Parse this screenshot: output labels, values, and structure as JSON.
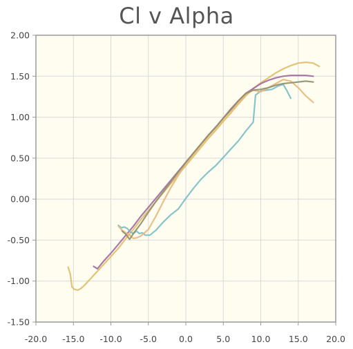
{
  "chart_data": {
    "type": "line",
    "title": "Cl v Alpha",
    "xlabel": "",
    "ylabel": "",
    "xlim": [
      -20,
      20
    ],
    "ylim": [
      -1.5,
      2.0
    ],
    "x_ticks": [
      "-20.0",
      "-15.0",
      "-10.0",
      "-5.0",
      "0.0",
      "5.0",
      "10.0",
      "15.0",
      "20.0"
    ],
    "y_ticks": [
      "2.00",
      "1.50",
      "1.00",
      "0.50",
      "0.00",
      "-0.50",
      "-1.00",
      "-1.50"
    ],
    "grid": true,
    "legend": "none",
    "plot_background": "#fffcf0",
    "grid_color": "#d9d9d9",
    "axis_color": "#999999",
    "series": [
      {
        "color": "#e0bc68",
        "points": [
          [
            -15.7,
            -0.83
          ],
          [
            -15.4,
            -0.92
          ],
          [
            -15.2,
            -1.07
          ],
          [
            -14.9,
            -1.1
          ],
          [
            -14.4,
            -1.11
          ],
          [
            -14.0,
            -1.09
          ],
          [
            -13.5,
            -1.05
          ],
          [
            -13.0,
            -1.0
          ],
          [
            -12.5,
            -0.95
          ],
          [
            -12.0,
            -0.9
          ],
          [
            -11.0,
            -0.8
          ],
          [
            -10.0,
            -0.7
          ],
          [
            -9.0,
            -0.6
          ],
          [
            -8.0,
            -0.48
          ],
          [
            -7.0,
            -0.37
          ],
          [
            -6.0,
            -0.25
          ],
          [
            -5.0,
            -0.14
          ],
          [
            -4.0,
            -0.03
          ],
          [
            -3.0,
            0.08
          ],
          [
            -2.0,
            0.19
          ],
          [
            -1.0,
            0.3
          ],
          [
            0.0,
            0.41
          ],
          [
            1.0,
            0.52
          ],
          [
            2.0,
            0.63
          ],
          [
            3.0,
            0.74
          ],
          [
            4.0,
            0.84
          ],
          [
            5.0,
            0.95
          ],
          [
            6.0,
            1.05
          ],
          [
            7.0,
            1.16
          ],
          [
            8.0,
            1.26
          ],
          [
            9.0,
            1.35
          ],
          [
            10.0,
            1.42
          ],
          [
            11.0,
            1.48
          ],
          [
            12.0,
            1.54
          ],
          [
            13.0,
            1.59
          ],
          [
            14.0,
            1.63
          ],
          [
            15.0,
            1.66
          ],
          [
            16.0,
            1.67
          ],
          [
            17.0,
            1.66
          ],
          [
            17.8,
            1.62
          ]
        ]
      },
      {
        "color": "#9e6b9e",
        "points": [
          [
            -12.3,
            -0.82
          ],
          [
            -11.8,
            -0.85
          ],
          [
            -11.0,
            -0.76
          ],
          [
            -10.0,
            -0.66
          ],
          [
            -9.0,
            -0.55
          ],
          [
            -8.0,
            -0.44
          ],
          [
            -7.0,
            -0.33
          ],
          [
            -6.0,
            -0.21
          ],
          [
            -5.0,
            -0.1
          ],
          [
            -4.0,
            0.01
          ],
          [
            -3.0,
            0.12
          ],
          [
            -2.0,
            0.23
          ],
          [
            -1.0,
            0.34
          ],
          [
            0.0,
            0.45
          ],
          [
            1.0,
            0.56
          ],
          [
            2.0,
            0.67
          ],
          [
            3.0,
            0.78
          ],
          [
            4.0,
            0.88
          ],
          [
            5.0,
            0.99
          ],
          [
            6.0,
            1.1
          ],
          [
            7.0,
            1.2
          ],
          [
            8.0,
            1.29
          ],
          [
            9.0,
            1.35
          ],
          [
            10.0,
            1.41
          ],
          [
            11.0,
            1.45
          ],
          [
            12.0,
            1.48
          ],
          [
            13.0,
            1.5
          ],
          [
            14.0,
            1.51
          ],
          [
            15.0,
            1.51
          ],
          [
            16.0,
            1.51
          ],
          [
            17.0,
            1.5
          ]
        ]
      },
      {
        "color": "#78bfc4",
        "points": [
          [
            -9.0,
            -0.32
          ],
          [
            -8.6,
            -0.35
          ],
          [
            -8.2,
            -0.34
          ],
          [
            -7.8,
            -0.36
          ],
          [
            -7.4,
            -0.4
          ],
          [
            -7.0,
            -0.42
          ],
          [
            -6.6,
            -0.39
          ],
          [
            -6.2,
            -0.42
          ],
          [
            -5.8,
            -0.41
          ],
          [
            -5.4,
            -0.44
          ],
          [
            -4.8,
            -0.44
          ],
          [
            -4.0,
            -0.38
          ],
          [
            -3.0,
            -0.28
          ],
          [
            -2.0,
            -0.19
          ],
          [
            -1.0,
            -0.12
          ],
          [
            0.0,
            0.01
          ],
          [
            1.0,
            0.13
          ],
          [
            2.0,
            0.24
          ],
          [
            3.0,
            0.33
          ],
          [
            4.0,
            0.41
          ],
          [
            5.0,
            0.51
          ],
          [
            6.0,
            0.61
          ],
          [
            7.0,
            0.71
          ],
          [
            8.0,
            0.83
          ],
          [
            9.0,
            0.94
          ],
          [
            9.3,
            1.27
          ],
          [
            10.0,
            1.32
          ],
          [
            10.8,
            1.33
          ],
          [
            11.5,
            1.34
          ],
          [
            12.3,
            1.38
          ],
          [
            13.0,
            1.4
          ],
          [
            13.5,
            1.32
          ],
          [
            14.0,
            1.23
          ]
        ]
      },
      {
        "color": "#e8b87a",
        "points": [
          [
            -9.0,
            -0.33
          ],
          [
            -8.5,
            -0.38
          ],
          [
            -8.0,
            -0.41
          ],
          [
            -7.5,
            -0.44
          ],
          [
            -7.0,
            -0.48
          ],
          [
            -6.5,
            -0.47
          ],
          [
            -6.0,
            -0.45
          ],
          [
            -5.0,
            -0.37
          ],
          [
            -4.0,
            -0.21
          ],
          [
            -3.0,
            -0.03
          ],
          [
            -2.0,
            0.14
          ],
          [
            -1.0,
            0.29
          ],
          [
            0.0,
            0.43
          ],
          [
            1.0,
            0.55
          ],
          [
            2.0,
            0.66
          ],
          [
            3.0,
            0.77
          ],
          [
            4.0,
            0.87
          ],
          [
            5.0,
            0.98
          ],
          [
            6.0,
            1.08
          ],
          [
            7.0,
            1.18
          ],
          [
            8.0,
            1.28
          ],
          [
            9.0,
            1.33
          ],
          [
            10.0,
            1.31
          ],
          [
            11.0,
            1.36
          ],
          [
            12.0,
            1.41
          ],
          [
            13.0,
            1.46
          ],
          [
            14.0,
            1.44
          ],
          [
            15.0,
            1.36
          ],
          [
            16.0,
            1.26
          ],
          [
            17.0,
            1.18
          ]
        ]
      },
      {
        "color": "#8f8f6e",
        "points": [
          [
            -8.5,
            -0.39
          ],
          [
            -8.0,
            -0.43
          ],
          [
            -7.5,
            -0.49
          ],
          [
            -7.0,
            -0.42
          ],
          [
            -6.0,
            -0.3
          ],
          [
            -5.0,
            -0.16
          ],
          [
            -4.0,
            -0.03
          ],
          [
            -3.0,
            0.09
          ],
          [
            -2.0,
            0.21
          ],
          [
            -1.0,
            0.33
          ],
          [
            0.0,
            0.45
          ],
          [
            1.0,
            0.56
          ],
          [
            2.0,
            0.67
          ],
          [
            3.0,
            0.78
          ],
          [
            4.0,
            0.88
          ],
          [
            5.0,
            0.99
          ],
          [
            6.0,
            1.09
          ],
          [
            7.0,
            1.2
          ],
          [
            8.0,
            1.29
          ],
          [
            9.0,
            1.33
          ],
          [
            10.0,
            1.34
          ],
          [
            11.0,
            1.36
          ],
          [
            12.0,
            1.39
          ],
          [
            13.0,
            1.41
          ],
          [
            14.0,
            1.42
          ],
          [
            15.0,
            1.43
          ],
          [
            16.0,
            1.44
          ],
          [
            17.0,
            1.43
          ]
        ]
      }
    ]
  }
}
